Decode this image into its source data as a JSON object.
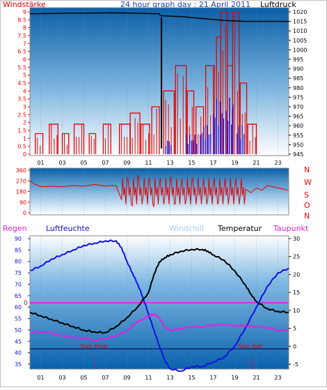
{
  "header": {
    "left_label": "Windstärke",
    "title": "24 hour graph day : 21 April 2011",
    "right_label": "Luftdruck"
  },
  "mid": {
    "direction_letters": [
      "N",
      "W",
      "S",
      "O",
      "N"
    ]
  },
  "bottom_header": {
    "regen": "Regen",
    "luftfeuchte": "Luftfeuchte",
    "windchill": "Windchill",
    "temperatur": "Temperatur",
    "taupunkt": "Taupunkt"
  },
  "sun": {
    "rise": "Sun Rise",
    "set": "Sun Set"
  },
  "colors": {
    "red": "#e60000",
    "blue": "#1010e0",
    "magenta": "#e020e0",
    "windchill": "#b8d8ff",
    "bg_top": "#0b6fb6",
    "bg_bottom": "#ffffff"
  },
  "chart_data": [
    {
      "type": "bar",
      "description": "Wind strength (red, left axis) with gusts (blue) and air pressure (black, right axis)",
      "x_ticks": [
        "01",
        "03",
        "05",
        "07",
        "09",
        "11",
        "13",
        "15",
        "17",
        "19",
        "21",
        "23"
      ],
      "xlim": [
        0,
        24
      ],
      "ylim_left": [
        0,
        9
      ],
      "y_ticks_left": [
        "0",
        "0.5",
        "1",
        "1.5",
        "2",
        "2.5",
        "3",
        "3.5",
        "4",
        "4.5",
        "5",
        "5.5",
        "6",
        "6.5",
        "7",
        "7.5",
        "8",
        "8.5",
        "9"
      ],
      "ylim_right": [
        945,
        1020
      ],
      "y_ticks_right": [
        "945",
        "950",
        "955",
        "960",
        "965",
        "970",
        "975",
        "980",
        "985",
        "990",
        "995",
        "1000",
        "1005",
        "1010",
        "1015",
        "1020"
      ],
      "pressure": {
        "x": [
          0,
          4,
          8,
          12,
          12.1,
          14,
          16,
          18,
          20,
          22,
          24
        ],
        "y": [
          1019,
          1019.3,
          1019.5,
          1019,
          1018,
          1017.5,
          1016.5,
          1015.5,
          1015,
          1015,
          1015
        ]
      },
      "pressure_drop": {
        "x": [
          12.2,
          12.2
        ],
        "y": [
          1017,
          948
        ]
      },
      "wind_segments": [
        {
          "x0": 0.5,
          "x1": 1.2,
          "v": 1.3
        },
        {
          "x0": 1.8,
          "x1": 2.6,
          "v": 1.9
        },
        {
          "x0": 3.0,
          "x1": 3.6,
          "v": 1.3
        },
        {
          "x0": 4.1,
          "x1": 5.0,
          "v": 1.9
        },
        {
          "x0": 5.5,
          "x1": 6.1,
          "v": 1.3
        },
        {
          "x0": 6.8,
          "x1": 7.5,
          "v": 1.9
        },
        {
          "x0": 8.3,
          "x1": 9.3,
          "v": 1.9
        },
        {
          "x0": 9.3,
          "x1": 10.2,
          "v": 2.6
        },
        {
          "x0": 10.3,
          "x1": 11.1,
          "v": 1.9
        },
        {
          "x0": 11.3,
          "x1": 12.0,
          "v": 3.0
        },
        {
          "x0": 12.4,
          "x1": 13.4,
          "v": 4.0
        },
        {
          "x0": 13.5,
          "x1": 14.5,
          "v": 5.6
        },
        {
          "x0": 14.6,
          "x1": 15.2,
          "v": 4.0
        },
        {
          "x0": 15.4,
          "x1": 16.1,
          "v": 3.0
        },
        {
          "x0": 16.3,
          "x1": 17.1,
          "v": 5.6
        },
        {
          "x0": 17.3,
          "x1": 17.7,
          "v": 7.4
        },
        {
          "x0": 17.7,
          "x1": 18.3,
          "v": 9.0
        },
        {
          "x0": 18.3,
          "x1": 18.8,
          "v": 5.6
        },
        {
          "x0": 18.8,
          "x1": 19.4,
          "v": 9.0
        },
        {
          "x0": 19.5,
          "x1": 20.1,
          "v": 4.5
        },
        {
          "x0": 20.2,
          "x1": 21.0,
          "v": 1.9
        }
      ],
      "gust_segments": [
        {
          "x0": 12.6,
          "x1": 13.2,
          "v": 1.0
        },
        {
          "x0": 14.5,
          "x1": 15.5,
          "v": 1.3
        },
        {
          "x0": 15.8,
          "x1": 16.8,
          "v": 1.9
        },
        {
          "x0": 17.0,
          "x1": 18.0,
          "v": 3.6
        },
        {
          "x0": 18.2,
          "x1": 19.0,
          "v": 3.6
        },
        {
          "x0": 19.2,
          "x1": 19.9,
          "v": 1.9
        }
      ]
    },
    {
      "type": "line",
      "description": "Wind direction in degrees",
      "ylim": [
        0,
        360
      ],
      "y_ticks": [
        "0",
        "90",
        "180",
        "270",
        "360"
      ],
      "x": [
        0,
        0.5,
        1,
        2,
        3,
        4,
        5,
        6,
        7,
        7.5,
        8,
        8.5,
        9,
        9.5,
        10,
        10.5,
        11,
        11.5,
        12,
        12.5,
        13,
        13.5,
        14,
        14.5,
        15,
        15.5,
        16,
        16.5,
        17,
        17.5,
        18,
        18.5,
        19,
        19.5,
        20,
        20.5,
        21,
        21.5,
        22,
        22.5,
        23,
        23.5,
        24
      ],
      "y": [
        270,
        240,
        220,
        225,
        220,
        230,
        225,
        240,
        225,
        230,
        230,
        110,
        300,
        60,
        320,
        140,
        280,
        50,
        260,
        120,
        300,
        80,
        220,
        110,
        280,
        150,
        200,
        120,
        250,
        100,
        210,
        150,
        230,
        140,
        200,
        170,
        210,
        190,
        230,
        220,
        210,
        200,
        190
      ]
    },
    {
      "type": "line",
      "description": "Humidity (blue, left axis), Temperature (black) and Dew point (magenta) on right axis",
      "ylim_left": [
        35,
        90
      ],
      "y_ticks_left": [
        "35",
        "40",
        "45",
        "50",
        "55",
        "60",
        "65",
        "70",
        "75",
        "80",
        "85",
        "90"
      ],
      "ylim_right": [
        -5,
        30
      ],
      "y_ticks_right": [
        "-5",
        "0",
        "5",
        "10",
        "15",
        "20",
        "25",
        "30"
      ],
      "sun_rise_x": 6.1,
      "sun_set_x": 20.6,
      "humidity": {
        "x": [
          0,
          1,
          2,
          3,
          4,
          5,
          6,
          7,
          8,
          8.5,
          9,
          9.5,
          10,
          10.5,
          11,
          11.5,
          12,
          12.5,
          13,
          14,
          15,
          16,
          17,
          18,
          19,
          20,
          21,
          22,
          23,
          24
        ],
        "y": [
          76,
          78,
          81,
          83,
          85,
          87,
          88,
          89,
          89,
          86,
          80,
          75,
          70,
          64,
          57,
          50,
          43,
          37,
          33,
          32,
          34,
          34,
          36,
          38,
          43,
          51,
          60,
          69,
          75,
          77
        ]
      },
      "temperature": {
        "x": [
          0,
          1,
          2,
          3,
          4,
          5,
          6,
          7,
          8,
          9,
          10,
          11,
          11.5,
          12,
          12.5,
          13,
          14,
          15,
          16,
          16.5,
          17,
          18,
          19,
          20,
          20.5,
          21,
          22,
          23,
          24
        ],
        "y": [
          9.5,
          8.5,
          7.5,
          6.5,
          5.5,
          4.5,
          4,
          3.8,
          5.5,
          8,
          11,
          15,
          20,
          23.5,
          24.7,
          25.5,
          26.5,
          27,
          27,
          26.5,
          25.5,
          24,
          21,
          17,
          14.5,
          12.5,
          10.5,
          9.7,
          9.5
        ]
      },
      "dewpoint": {
        "x": [
          0,
          1,
          2,
          3,
          4,
          5,
          6,
          7,
          8,
          9,
          10,
          10.5,
          11,
          11.5,
          12,
          12.5,
          13,
          14,
          15,
          16,
          17,
          18,
          19,
          20,
          21,
          22,
          23,
          24
        ],
        "y": [
          4,
          4,
          3.7,
          3,
          2.6,
          2.2,
          1.7,
          2.2,
          3,
          4.5,
          7,
          7.5,
          8.5,
          9,
          8,
          5.5,
          4.5,
          5,
          5.5,
          5.5,
          6,
          6,
          5.8,
          5.8,
          5.5,
          5.3,
          4.5,
          4.5
        ]
      },
      "regen_marker": "0"
    }
  ]
}
